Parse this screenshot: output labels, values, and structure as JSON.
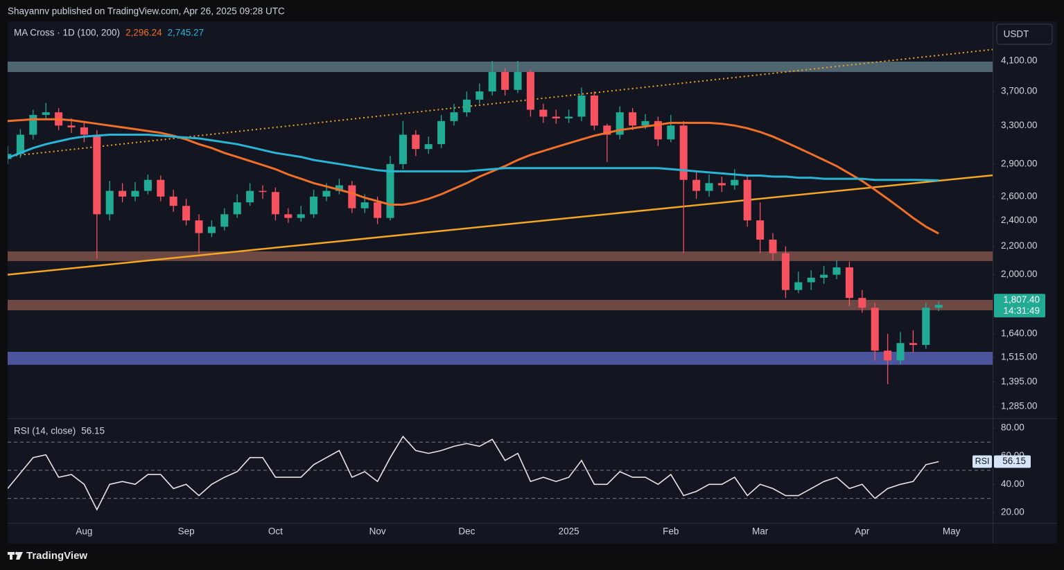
{
  "header": "Shayannv published on TradingView.com, Apr 26, 2025 09:28 UTC",
  "footer": "TradingView",
  "currency": "USDT",
  "chart_data": [
    {
      "type": "candlestick",
      "indicator": "MA Cross · 1D (100, 200)",
      "log_scale": true,
      "up_color": "#22ab94",
      "down_color": "#f7525f",
      "categories": [
        null,
        null,
        null,
        null,
        null,
        null,
        "Aug",
        null,
        null,
        null,
        null,
        null,
        null,
        null,
        "Sep",
        null,
        null,
        null,
        null,
        null,
        null,
        "Oct",
        null,
        null,
        null,
        null,
        null,
        null,
        null,
        "Nov",
        null,
        null,
        null,
        null,
        null,
        null,
        "Dec",
        null,
        null,
        null,
        null,
        null,
        null,
        null,
        "2025",
        null,
        null,
        null,
        null,
        null,
        null,
        null,
        "Feb",
        null,
        null,
        null,
        null,
        null,
        null,
        "Mar",
        null,
        null,
        null,
        null,
        null,
        null,
        null,
        "Apr",
        null,
        null,
        null,
        null,
        null,
        null,
        "May",
        null
      ],
      "open": [
        2950,
        3000,
        3200,
        3420,
        3450,
        3300,
        3280,
        3200,
        2450,
        2650,
        2600,
        2650,
        2750,
        2600,
        2520,
        2400,
        2300,
        2350,
        2450,
        2550,
        2650,
        2640,
        2450,
        2420,
        2450,
        2600,
        2650,
        2700,
        2500,
        2550,
        2420,
        2900,
        3200,
        3050,
        3100,
        3350,
        3450,
        3600,
        3700,
        3950,
        3720,
        3950,
        3480,
        3400,
        3380,
        3400,
        3650,
        3300,
        3200,
        3450,
        3300,
        3350,
        3150,
        3300,
        2750,
        2650,
        2720,
        2700,
        2750,
        2400,
        2250,
        2150,
        1900,
        1950,
        1980,
        2000,
        2050,
        1850,
        1790,
        1550,
        1500,
        1590,
        1580,
        1790,
        null,
        null
      ],
      "high": [
        3080,
        3260,
        3480,
        3560,
        3500,
        3380,
        3330,
        3250,
        2740,
        2720,
        2730,
        2800,
        2790,
        2660,
        2580,
        2450,
        2400,
        2500,
        2620,
        2720,
        2700,
        2680,
        2500,
        2520,
        2660,
        2720,
        2760,
        2740,
        2620,
        2600,
        2980,
        3350,
        3250,
        3180,
        3420,
        3550,
        3700,
        3800,
        4100,
        4000,
        4100,
        3980,
        3550,
        3480,
        3480,
        3750,
        3700,
        3320,
        3520,
        3500,
        3430,
        3400,
        3420,
        3350,
        2820,
        2800,
        2780,
        2850,
        2780,
        2550,
        2300,
        2200,
        2020,
        2030,
        2060,
        2100,
        2090,
        1900,
        1820,
        1640,
        1650,
        1660,
        1820,
        1830,
        null,
        null
      ],
      "low": [
        2900,
        2960,
        3150,
        3380,
        3250,
        3220,
        3120,
        2110,
        2400,
        2550,
        2560,
        2620,
        2560,
        2470,
        2360,
        2150,
        2270,
        2320,
        2420,
        2520,
        2580,
        2400,
        2380,
        2390,
        2420,
        2560,
        2620,
        2460,
        2460,
        2370,
        2400,
        2850,
        2980,
        3000,
        3060,
        3300,
        3400,
        3550,
        3650,
        3650,
        3680,
        3400,
        3330,
        3320,
        3330,
        3350,
        3250,
        2920,
        3150,
        3250,
        3260,
        3080,
        3120,
        2150,
        2580,
        2600,
        2640,
        2660,
        2350,
        2150,
        2100,
        1850,
        1880,
        1900,
        1940,
        1970,
        1800,
        1760,
        1500,
        1385,
        1480,
        1540,
        1560,
        1770,
        null,
        null
      ],
      "close": [
        3000,
        3200,
        3420,
        3450,
        3300,
        3280,
        3200,
        2450,
        2650,
        2600,
        2650,
        2750,
        2600,
        2520,
        2400,
        2300,
        2350,
        2450,
        2550,
        2650,
        2640,
        2450,
        2420,
        2450,
        2600,
        2650,
        2700,
        2500,
        2550,
        2420,
        2900,
        3200,
        3050,
        3100,
        3350,
        3450,
        3600,
        3700,
        3950,
        3720,
        3950,
        3480,
        3400,
        3380,
        3400,
        3650,
        3300,
        3200,
        3450,
        3300,
        3350,
        3150,
        3300,
        2750,
        2650,
        2720,
        2700,
        2750,
        2400,
        2250,
        2150,
        1900,
        1950,
        1980,
        2000,
        2050,
        1850,
        1790,
        1550,
        1500,
        1590,
        1580,
        1790,
        1807.4,
        null,
        null
      ],
      "series": [
        {
          "color": "#f0702a",
          "value_label": "2,296.24",
          "values": [
            3350,
            3360,
            3370,
            3370,
            3370,
            3360,
            3340,
            3320,
            3300,
            3280,
            3260,
            3240,
            3220,
            3190,
            3150,
            3100,
            3060,
            3010,
            2970,
            2930,
            2890,
            2850,
            2800,
            2760,
            2720,
            2690,
            2660,
            2630,
            2590,
            2560,
            2530,
            2530,
            2550,
            2580,
            2620,
            2670,
            2720,
            2780,
            2830,
            2880,
            2940,
            2990,
            3030,
            3070,
            3110,
            3150,
            3190,
            3220,
            3250,
            3270,
            3290,
            3310,
            3330,
            3330,
            3330,
            3330,
            3320,
            3300,
            3270,
            3230,
            3180,
            3120,
            3060,
            3000,
            2940,
            2880,
            2810,
            2740,
            2660,
            2580,
            2500,
            2420,
            2350,
            2296.24,
            null,
            null
          ]
        },
        {
          "color": "#2bb5d4",
          "value_label": "2,745.27",
          "values": [
            2960,
            3010,
            3060,
            3100,
            3130,
            3160,
            3180,
            3190,
            3200,
            3200,
            3200,
            3200,
            3190,
            3180,
            3170,
            3160,
            3140,
            3120,
            3100,
            3070,
            3040,
            3010,
            2990,
            2970,
            2940,
            2920,
            2900,
            2880,
            2860,
            2840,
            2830,
            2830,
            2830,
            2830,
            2830,
            2830,
            2830,
            2840,
            2850,
            2860,
            2860,
            2860,
            2860,
            2860,
            2860,
            2860,
            2860,
            2860,
            2860,
            2860,
            2860,
            2860,
            2850,
            2840,
            2830,
            2820,
            2810,
            2800,
            2790,
            2790,
            2780,
            2780,
            2770,
            2770,
            2760,
            2760,
            2760,
            2760,
            2750,
            2750,
            2750,
            2750,
            2748,
            2745.27,
            null,
            null
          ]
        }
      ],
      "zones": [
        {
          "from": 3950,
          "to": 4090,
          "color": "#4f6570"
        },
        {
          "from": 2094,
          "to": 2163,
          "color": "#6e4842"
        },
        {
          "from": 1775,
          "to": 1838,
          "color": "#6e4842"
        },
        {
          "from": 1478,
          "to": 1544,
          "color": "#4c559b"
        }
      ],
      "trendlines": [
        {
          "values": [
            2975,
            4177
          ],
          "color": "#f5a623",
          "dashed": true
        },
        {
          "values": [
            2000,
            2742
          ],
          "color": "#f5a623",
          "dashed": false
        }
      ],
      "last_price": {
        "value": 1807.4,
        "label": "1,807.40"
      },
      "countdown": "14:31:49",
      "ylim": [
        1235,
        4680
      ],
      "yticks": [
        {
          "value": 4100,
          "label": "4,100.00"
        },
        {
          "value": 3700,
          "label": "3,700.00"
        },
        {
          "value": 3300,
          "label": "3,300.00"
        },
        {
          "value": 2900,
          "label": "2,900.00"
        },
        {
          "value": 2600,
          "label": "2,600.00"
        },
        {
          "value": 2400,
          "label": "2,400.00"
        },
        {
          "value": 2200,
          "label": "2,200.00"
        },
        {
          "value": 2000,
          "label": "2,000.00"
        },
        {
          "value": 1640,
          "label": "1,640.00"
        },
        {
          "value": 1515,
          "label": "1,515.00"
        },
        {
          "value": 1395,
          "label": "1,395.00"
        },
        {
          "value": 1285,
          "label": "1,285.00"
        }
      ]
    },
    {
      "type": "line",
      "indicator": "RSI (14, close)",
      "tag": "RSI",
      "color": "#e8e8e8",
      "values": [
        37,
        48,
        59,
        61,
        45,
        47,
        40,
        22,
        40,
        42,
        40,
        47,
        47,
        37,
        40,
        32,
        40,
        45,
        49,
        59,
        59,
        45,
        45,
        45,
        54,
        59,
        64,
        45,
        49,
        42,
        59,
        74,
        64,
        62,
        64,
        67,
        69,
        67,
        72,
        57,
        62,
        42,
        45,
        42,
        45,
        57,
        40,
        40,
        49,
        45,
        45,
        40,
        47,
        32,
        35,
        40,
        40,
        45,
        32,
        40,
        37,
        32,
        32,
        37,
        42,
        45,
        37,
        40,
        30,
        37,
        40,
        42,
        54,
        56.15,
        null,
        null
      ],
      "levels": [
        70,
        50,
        30
      ],
      "ylim": [
        12.6,
        86.4
      ],
      "yticks": [
        {
          "value": 80,
          "label": "80.00"
        },
        {
          "value": 60,
          "label": "60.00"
        },
        {
          "value": 40,
          "label": "40.00"
        },
        {
          "value": 20,
          "label": "20.00"
        }
      ]
    }
  ]
}
